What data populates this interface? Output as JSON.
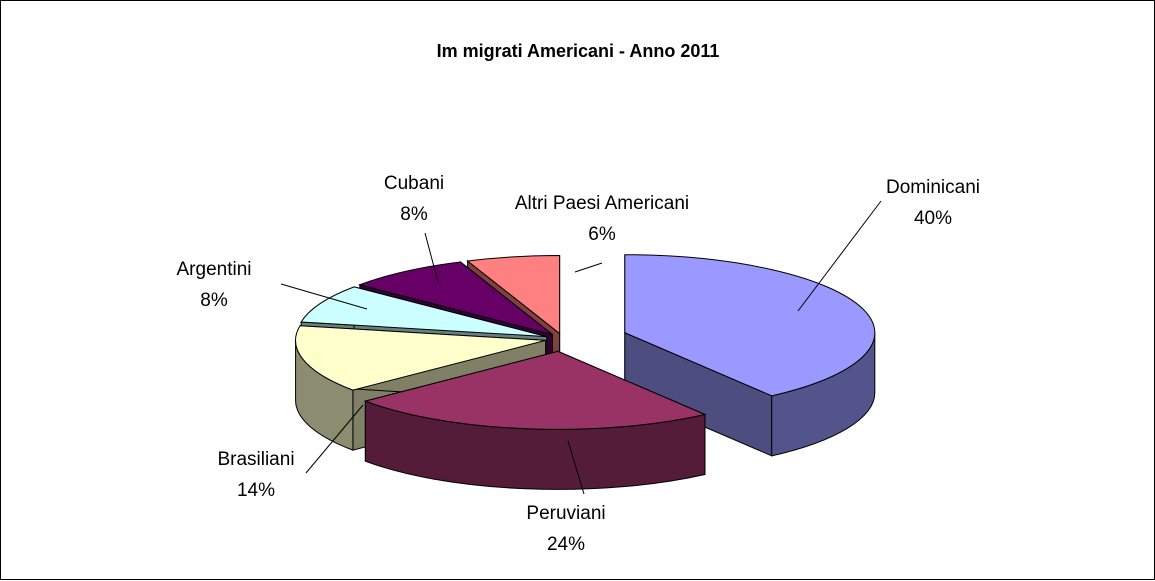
{
  "chart_data": {
    "type": "pie",
    "title": "Im migrati Americani - Anno 2011",
    "categories": [
      "Dominicani",
      "Peruviani",
      "Brasiliani",
      "Argentini",
      "Cubani",
      "Altri Paesi Americani"
    ],
    "values": [
      40,
      24,
      14,
      8,
      8,
      6
    ],
    "value_labels": [
      "40%",
      "24%",
      "14%",
      "8%",
      "8%",
      "6%"
    ],
    "colors": [
      "#9999ff",
      "#993366",
      "#ffffcc",
      "#ccffff",
      "#660066",
      "#ff8080"
    ],
    "style": "3d-exploded",
    "legend": "none"
  }
}
